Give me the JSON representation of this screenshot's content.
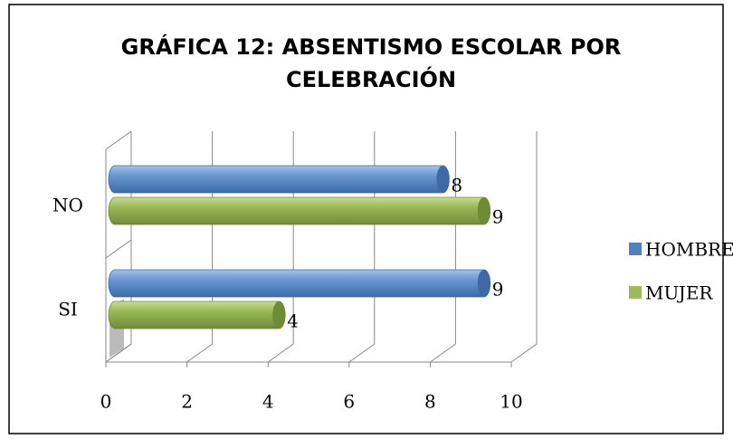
{
  "chart_data": {
    "type": "bar",
    "orientation": "horizontal",
    "title": "GRÁFICA 12: ABSENTISMO ESCOLAR POR CELEBRACIÓN",
    "categories": [
      "NO",
      "SI"
    ],
    "series": [
      {
        "name": "HOMBRE",
        "color": "#4f81bd",
        "values": [
          8,
          9
        ]
      },
      {
        "name": "MUJER",
        "color": "#9bbb59",
        "values": [
          9,
          4
        ]
      }
    ],
    "xlim": [
      0,
      10
    ],
    "xticks": [
      0,
      2,
      4,
      6,
      8,
      10
    ],
    "grid": true,
    "legend": "right"
  }
}
